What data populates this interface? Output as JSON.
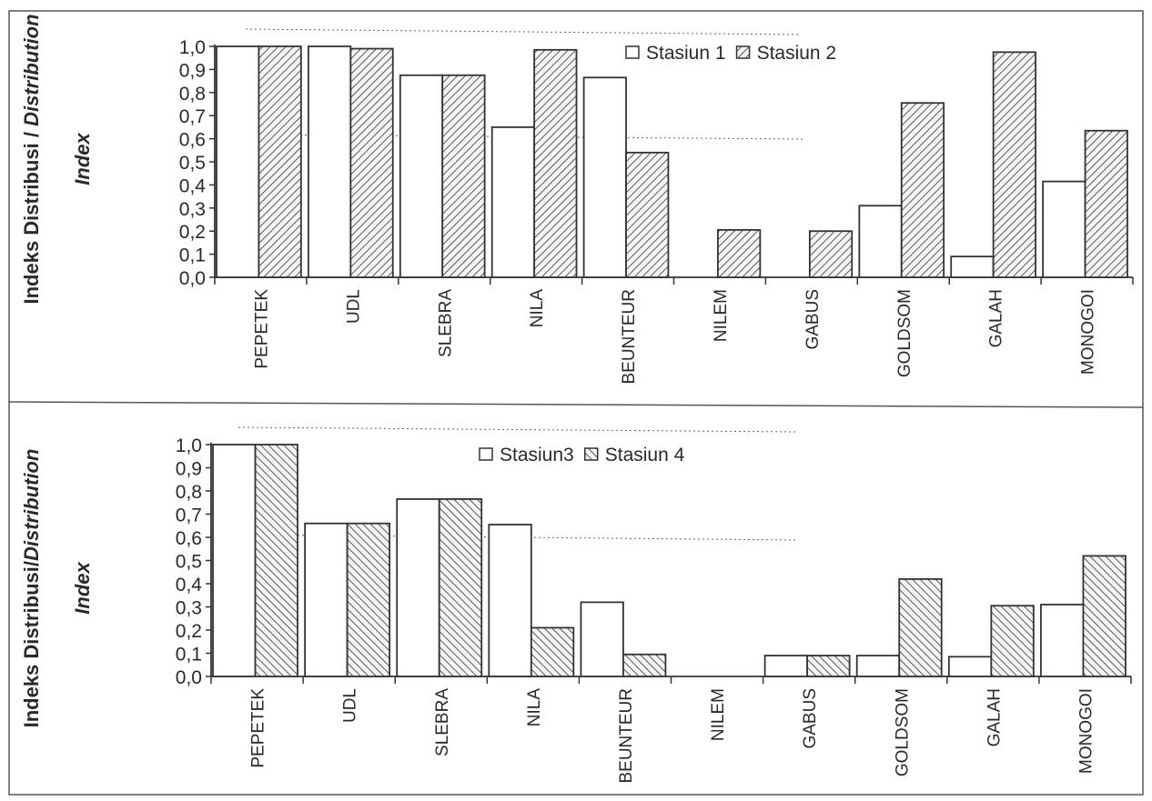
{
  "chart_data": [
    {
      "type": "bar",
      "ylabel_line1": "Indeks Distribusi / ",
      "ylabel_line1_italic": "Distribution",
      "ylabel_line2": "Index",
      "ylim": [
        0,
        1.0
      ],
      "yticks": [
        "0,0",
        "0,1",
        "0,2",
        "0,3",
        "0,4",
        "0,5",
        "0,6",
        "0,7",
        "0,8",
        "0,9",
        "1,0"
      ],
      "categories": [
        "PEPETEK",
        "UDL",
        "SLEBRA",
        "NILA",
        "BEUNTEUR",
        "NILEM",
        "GABUS",
        "GOLDSOM",
        "GALAH",
        "MONOGOI"
      ],
      "series": [
        {
          "name": "Stasiun 1",
          "values": [
            1.0,
            1.0,
            0.875,
            0.65,
            0.865,
            0.0,
            0.0,
            0.31,
            0.09,
            0.415
          ]
        },
        {
          "name": "Stasiun 2",
          "values": [
            1.0,
            0.99,
            0.875,
            0.985,
            0.54,
            0.205,
            0.2,
            0.755,
            0.975,
            0.635
          ]
        }
      ]
    },
    {
      "type": "bar",
      "ylabel_line1": "Indeks Distribusi/",
      "ylabel_line1_italic": "Distribution",
      "ylabel_line2": "Index",
      "ylim": [
        0,
        1.0
      ],
      "yticks": [
        "0,0",
        "0,1",
        "0,2",
        "0,3",
        "0,4",
        "0,5",
        "0,6",
        "0,7",
        "0,8",
        "0,9",
        "1,0"
      ],
      "categories": [
        "PEPETEK",
        "UDL",
        "SLEBRA",
        "NILA",
        "BEUNTEUR",
        "NILEM",
        "GABUS",
        "GOLDSOM",
        "GALAH",
        "MONOGOI"
      ],
      "series": [
        {
          "name": "Stasiun3",
          "values": [
            1.0,
            0.66,
            0.765,
            0.655,
            0.32,
            0.0,
            0.09,
            0.09,
            0.085,
            0.31
          ]
        },
        {
          "name": "Stasiun 4",
          "values": [
            1.0,
            0.66,
            0.765,
            0.21,
            0.095,
            0.0,
            0.09,
            0.42,
            0.305,
            0.52
          ]
        }
      ]
    }
  ]
}
